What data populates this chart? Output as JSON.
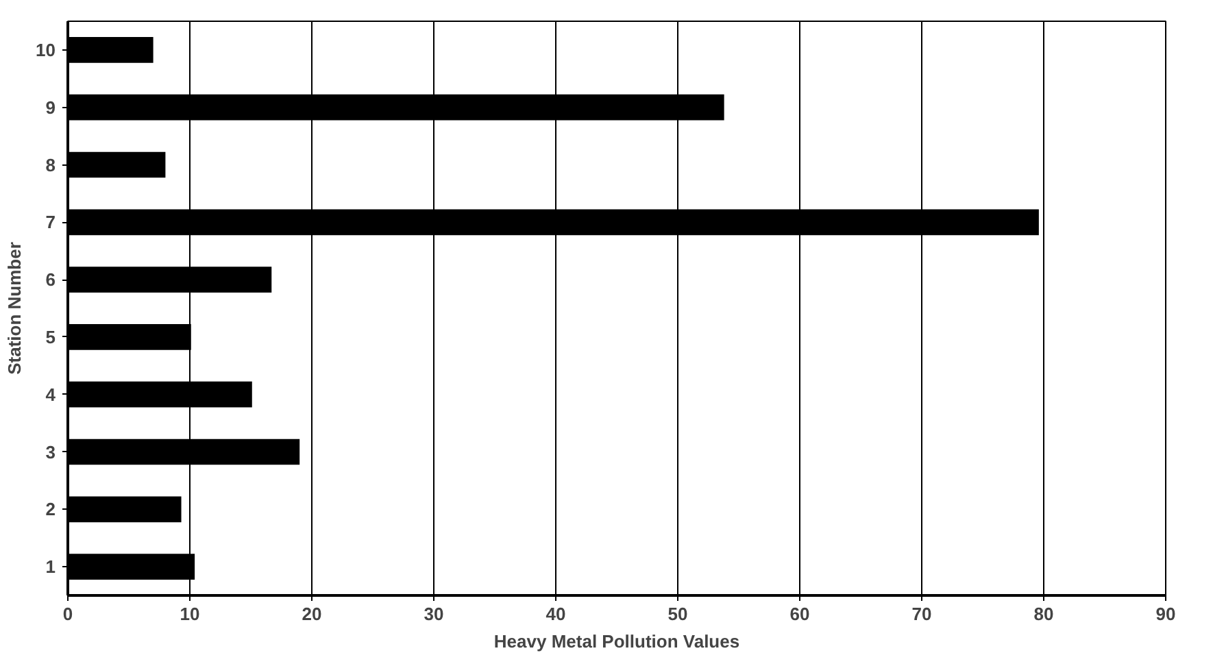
{
  "chart_data": {
    "type": "bar",
    "orientation": "horizontal",
    "xlabel": "Heavy Metal Pollution Values",
    "ylabel": "Station Number",
    "categories": [
      "10",
      "9",
      "8",
      "7",
      "6",
      "5",
      "4",
      "3",
      "2",
      "1"
    ],
    "values": [
      7.0,
      53.8,
      8.0,
      79.6,
      16.7,
      10.1,
      15.1,
      19.0,
      9.3,
      10.4
    ],
    "color": "#000000",
    "xlim": [
      0,
      90
    ],
    "xticks": [
      0,
      10,
      20,
      30,
      40,
      50,
      60,
      70,
      80,
      90
    ],
    "grid": "x"
  }
}
